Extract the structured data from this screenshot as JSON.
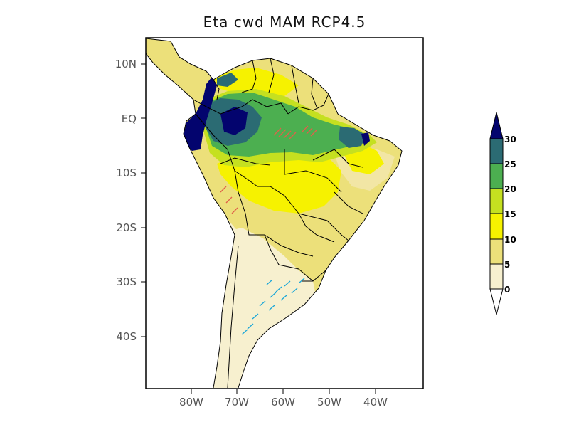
{
  "title": "Eta  cwd MAM RCP4.5",
  "lat_ticks": [
    "10N",
    "EQ",
    "10S",
    "20S",
    "30S",
    "40S"
  ],
  "lon_ticks": [
    "80W",
    "70W",
    "60W",
    "50W",
    "40W"
  ],
  "colorbar": {
    "labels": [
      "0",
      "5",
      "10",
      "15",
      "20",
      "25",
      "30"
    ],
    "colors": [
      "#f7f0cf",
      "#ece07a",
      "#f6f200",
      "#c5e020",
      "#4caf50",
      "#2b6b73",
      "#03046e"
    ]
  },
  "colors": {
    "ocean": "#ffffff",
    "frame": "#000000",
    "border": "#000000",
    "red_hatch": "#e0604a",
    "cyan_hatch": "#1aa6d8"
  }
}
